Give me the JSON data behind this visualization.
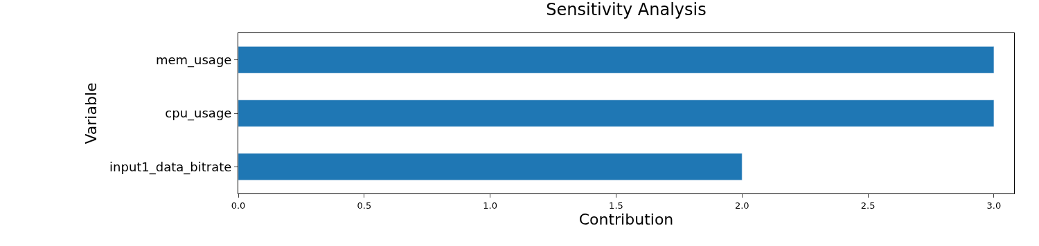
{
  "chart_data": {
    "type": "bar",
    "orientation": "horizontal",
    "title": "Sensitivity Analysis",
    "xlabel": "Contribution",
    "ylabel": "Variable",
    "categories": [
      "mem_usage",
      "cpu_usage",
      "input1_data_bitrate"
    ],
    "values": [
      3,
      3,
      2
    ],
    "color": "#1f77b4",
    "xlim": [
      0,
      3.08
    ],
    "xticks": [
      {
        "value": 0,
        "label": "0.0"
      },
      {
        "value": 0.5,
        "label": "0.5"
      },
      {
        "value": 1,
        "label": "1.0"
      },
      {
        "value": 1.5,
        "label": "1.5"
      },
      {
        "value": 2,
        "label": "2.0"
      },
      {
        "value": 2.5,
        "label": "2.5"
      },
      {
        "value": 3,
        "label": "3.0"
      }
    ],
    "legend": false
  }
}
